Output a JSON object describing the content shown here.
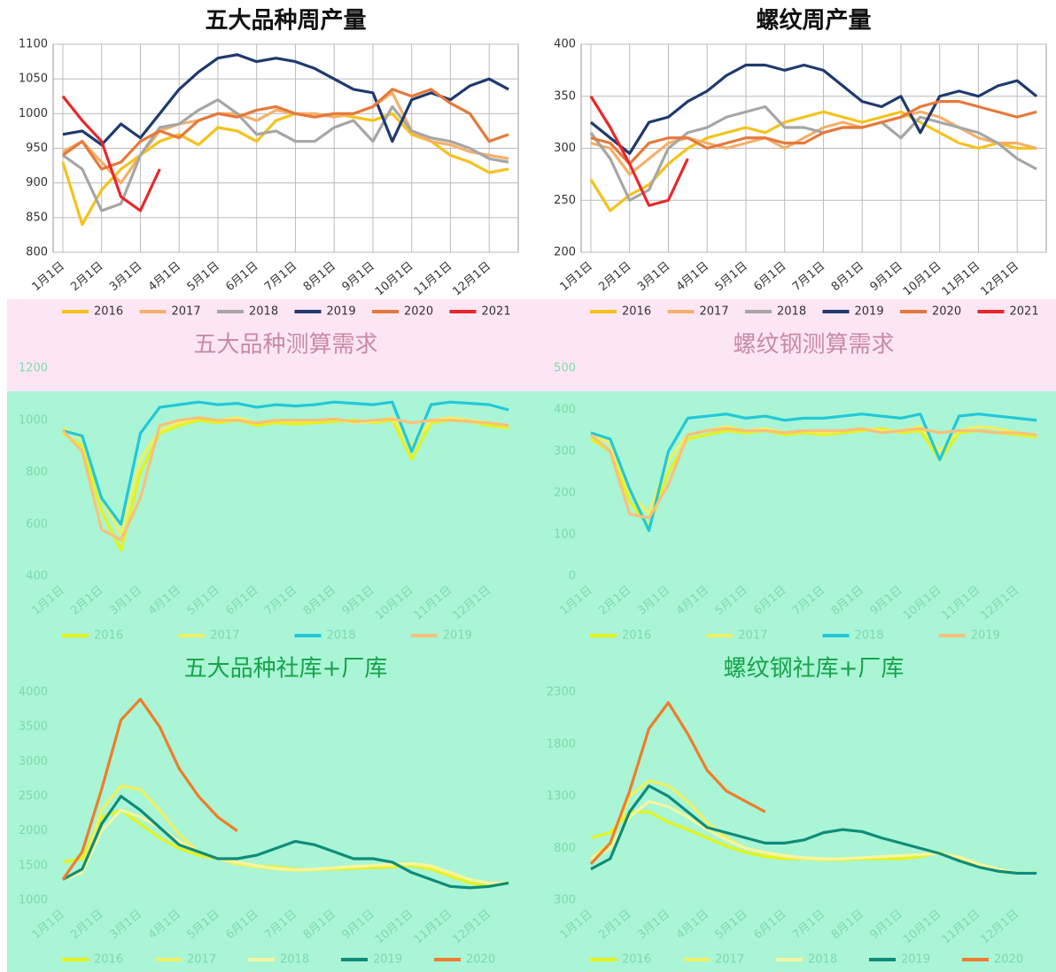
{
  "chart_data": [
    {
      "type": "line",
      "title": "五大品种周产量",
      "ylim": [
        800,
        1100
      ],
      "yticks": [
        800,
        850,
        900,
        950,
        1000,
        1050,
        1100
      ],
      "grid": true,
      "categories": [
        "1月1日",
        null,
        "2月1日",
        null,
        "3月1日",
        null,
        "4月1日",
        null,
        "5月1日",
        null,
        "6月1日",
        null,
        "7月1日",
        null,
        "8月1日",
        null,
        "9月1日",
        null,
        "10月1日",
        null,
        "11月1日",
        null,
        "12月1日",
        null
      ],
      "series": [
        {
          "name": "2016",
          "color": "#f5c21b",
          "values": [
            930,
            840,
            890,
            920,
            940,
            960,
            970,
            955,
            980,
            975,
            960,
            990,
            1000,
            995,
            1000,
            995,
            990,
            1000,
            970,
            960,
            940,
            930,
            915,
            920
          ]
        },
        {
          "name": "2017",
          "color": "#f4b06a",
          "values": [
            945,
            960,
            930,
            900,
            940,
            975,
            985,
            990,
            1000,
            1000,
            990,
            1005,
            1000,
            1000,
            995,
            1000,
            1010,
            1030,
            975,
            960,
            955,
            945,
            940,
            935
          ]
        },
        {
          "name": "2018",
          "color": "#a6a6a6",
          "values": [
            940,
            920,
            860,
            870,
            940,
            980,
            985,
            1005,
            1020,
            1000,
            970,
            975,
            960,
            960,
            980,
            990,
            960,
            1010,
            975,
            965,
            960,
            950,
            935,
            930
          ]
        },
        {
          "name": "2019",
          "color": "#1f3a6e",
          "values": [
            970,
            975,
            955,
            985,
            965,
            1000,
            1035,
            1060,
            1080,
            1085,
            1075,
            1080,
            1075,
            1065,
            1050,
            1035,
            1030,
            960,
            1020,
            1030,
            1020,
            1040,
            1050,
            1035
          ]
        },
        {
          "name": "2020",
          "color": "#e5793b",
          "values": [
            940,
            960,
            920,
            930,
            960,
            975,
            965,
            990,
            1000,
            995,
            1005,
            1010,
            1000,
            995,
            1000,
            1000,
            1010,
            1035,
            1025,
            1035,
            1015,
            1000,
            960,
            970
          ]
        },
        {
          "name": "2021",
          "color": "#e8272a",
          "values": [
            1025,
            990,
            960,
            880,
            860,
            920,
            null,
            null,
            null,
            null,
            null,
            null,
            null,
            null,
            null,
            null,
            null,
            null,
            null,
            null,
            null,
            null,
            null,
            null
          ]
        }
      ]
    },
    {
      "type": "line",
      "title": "螺纹周产量",
      "ylim": [
        200,
        400
      ],
      "yticks": [
        200,
        250,
        300,
        350,
        400
      ],
      "grid": true,
      "categories": [
        "1月1日",
        null,
        "2月1日",
        null,
        "3月1日",
        null,
        "4月1日",
        null,
        "5月1日",
        null,
        "6月1日",
        null,
        "7月1日",
        null,
        "8月1日",
        null,
        "9月1日",
        null,
        "10月1日",
        null,
        "11月1日",
        null,
        "12月1日",
        null
      ],
      "series": [
        {
          "name": "2016",
          "color": "#f5c21b",
          "values": [
            270,
            240,
            255,
            265,
            285,
            300,
            310,
            315,
            320,
            315,
            325,
            330,
            335,
            330,
            325,
            330,
            335,
            325,
            315,
            305,
            300,
            305,
            300,
            300
          ]
        },
        {
          "name": "2017",
          "color": "#f4b06a",
          "values": [
            305,
            300,
            275,
            290,
            305,
            310,
            305,
            300,
            305,
            310,
            300,
            310,
            320,
            325,
            320,
            325,
            330,
            335,
            330,
            320,
            310,
            305,
            305,
            300
          ]
        },
        {
          "name": "2018",
          "color": "#a6a6a6",
          "values": [
            315,
            290,
            250,
            260,
            300,
            315,
            320,
            330,
            335,
            340,
            320,
            320,
            315,
            320,
            320,
            325,
            310,
            330,
            325,
            320,
            315,
            305,
            290,
            280
          ]
        },
        {
          "name": "2019",
          "color": "#1f3a6e",
          "values": [
            325,
            310,
            295,
            325,
            330,
            345,
            355,
            370,
            380,
            380,
            375,
            380,
            375,
            360,
            345,
            340,
            350,
            315,
            350,
            355,
            350,
            360,
            365,
            350
          ]
        },
        {
          "name": "2020",
          "color": "#e5793b",
          "values": [
            310,
            305,
            285,
            305,
            310,
            310,
            300,
            305,
            310,
            310,
            305,
            305,
            315,
            320,
            320,
            325,
            330,
            340,
            345,
            345,
            340,
            335,
            330,
            335
          ]
        },
        {
          "name": "2021",
          "color": "#e8272a",
          "values": [
            350,
            320,
            285,
            245,
            250,
            290,
            null,
            null,
            null,
            null,
            null,
            null,
            null,
            null,
            null,
            null,
            null,
            null,
            null,
            null,
            null,
            null,
            null,
            null
          ]
        }
      ]
    },
    {
      "type": "line",
      "title": "五大品种测算需求",
      "ylim": [
        400,
        1200
      ],
      "yticks": [
        400,
        600,
        800,
        1000,
        1200
      ],
      "grid": false,
      "categories": [
        "1月1日",
        null,
        "2月1日",
        null,
        "3月1日",
        null,
        "4月1日",
        null,
        "5月1日",
        null,
        "6月1日",
        null,
        "7月1日",
        null,
        "8月1日",
        null,
        "9月1日",
        null,
        "10月1日",
        null,
        "11月1日",
        null,
        "12月1日",
        null
      ],
      "series": [
        {
          "name": "2016",
          "color": "#e6f21a",
          "values": [
            950,
            900,
            650,
            500,
            800,
            950,
            980,
            1000,
            990,
            1000,
            980,
            990,
            985,
            990,
            995,
            1000,
            990,
            1000,
            850,
            990,
            1000,
            995,
            980,
            970
          ]
        },
        {
          "name": "2017",
          "color": "#f0f060",
          "values": [
            970,
            930,
            700,
            560,
            850,
            960,
            990,
            1010,
            1000,
            1010,
            990,
            1000,
            995,
            1000,
            1005,
            990,
            995,
            1010,
            900,
            1000,
            1010,
            1000,
            990,
            980
          ]
        },
        {
          "name": "2018",
          "color": "#22c8d8",
          "values": [
            960,
            940,
            700,
            600,
            950,
            1050,
            1060,
            1070,
            1060,
            1065,
            1050,
            1060,
            1055,
            1060,
            1070,
            1065,
            1060,
            1070,
            880,
            1060,
            1070,
            1065,
            1060,
            1040
          ]
        },
        {
          "name": "2019",
          "color": "#f9c07a",
          "values": [
            960,
            880,
            580,
            540,
            700,
            980,
            1000,
            1010,
            1000,
            1000,
            990,
            1000,
            1000,
            1000,
            1005,
            995,
            1000,
            1005,
            990,
            1000,
            1000,
            995,
            990,
            980
          ]
        }
      ]
    },
    {
      "type": "line",
      "title": "螺纹钢测算需求",
      "ylim": [
        0,
        500
      ],
      "yticks": [
        0,
        100,
        200,
        300,
        400,
        500
      ],
      "grid": false,
      "categories": [
        "1月1日",
        null,
        "2月1日",
        null,
        "3月1日",
        null,
        "4月1日",
        null,
        "5月1日",
        null,
        "6月1日",
        null,
        "7月1日",
        null,
        "8月1日",
        null,
        "9月1日",
        null,
        "10月1日",
        null,
        "11月1日",
        null,
        "12月1日",
        null
      ],
      "series": [
        {
          "name": "2016",
          "color": "#e6f21a",
          "values": [
            330,
            300,
            180,
            120,
            250,
            330,
            340,
            350,
            345,
            350,
            340,
            345,
            340,
            345,
            350,
            355,
            345,
            350,
            280,
            345,
            350,
            345,
            340,
            335
          ]
        },
        {
          "name": "2017",
          "color": "#f0f060",
          "values": [
            340,
            320,
            200,
            150,
            280,
            340,
            350,
            360,
            350,
            355,
            345,
            350,
            345,
            350,
            355,
            350,
            350,
            360,
            300,
            350,
            360,
            355,
            345,
            340
          ]
        },
        {
          "name": "2018",
          "color": "#22c8d8",
          "values": [
            345,
            330,
            210,
            110,
            300,
            380,
            385,
            390,
            380,
            385,
            375,
            380,
            380,
            385,
            390,
            385,
            380,
            390,
            280,
            385,
            390,
            385,
            380,
            375
          ]
        },
        {
          "name": "2019",
          "color": "#f9c07a",
          "values": [
            340,
            300,
            150,
            140,
            220,
            340,
            350,
            355,
            350,
            350,
            345,
            350,
            350,
            350,
            355,
            345,
            350,
            355,
            345,
            350,
            350,
            345,
            345,
            340
          ]
        }
      ]
    },
    {
      "type": "line",
      "title": "五大品种社库+厂库",
      "ylim": [
        1000,
        4000
      ],
      "yticks": [
        1000,
        1500,
        2000,
        2500,
        3000,
        3500,
        4000
      ],
      "grid": false,
      "categories": [
        "1月1日",
        null,
        "2月1日",
        null,
        "3月1日",
        null,
        "4月1日",
        null,
        "5月1日",
        null,
        "6月1日",
        null,
        "7月1日",
        null,
        "8月1日",
        null,
        "9月1日",
        null,
        "10月1日",
        null,
        "11月1日",
        null,
        "12月1日",
        null
      ],
      "series": [
        {
          "name": "2016",
          "color": "#e6f21a",
          "values": [
            1550,
            1600,
            2200,
            2300,
            2100,
            1900,
            1750,
            1650,
            1600,
            1550,
            1500,
            1480,
            1450,
            1440,
            1450,
            1460,
            1470,
            1480,
            1500,
            1450,
            1350,
            1250,
            1200,
            1250
          ]
        },
        {
          "name": "2017",
          "color": "#f0f060",
          "values": [
            1300,
            1450,
            2300,
            2650,
            2600,
            2300,
            1950,
            1700,
            1600,
            1520,
            1480,
            1450,
            1430,
            1440,
            1460,
            1480,
            1500,
            1500,
            1520,
            1480,
            1380,
            1300,
            1250,
            1250
          ]
        },
        {
          "name": "2018",
          "color": "#f5f5a0",
          "values": [
            1300,
            1400,
            2000,
            2300,
            2200,
            2050,
            1850,
            1700,
            1600,
            1550,
            1500,
            1460,
            1440,
            1450,
            1470,
            1490,
            1500,
            1520,
            1530,
            1500,
            1400,
            1300,
            1250,
            1250
          ]
        },
        {
          "name": "2019",
          "color": "#0f8c7a",
          "values": [
            1300,
            1450,
            2100,
            2500,
            2300,
            2050,
            1800,
            1700,
            1600,
            1600,
            1650,
            1750,
            1850,
            1800,
            1700,
            1600,
            1600,
            1550,
            1400,
            1300,
            1200,
            1180,
            1200,
            1250
          ]
        },
        {
          "name": "2020",
          "color": "#ef7d2a",
          "values": [
            1300,
            1700,
            2600,
            3600,
            3900,
            3500,
            2900,
            2500,
            2200,
            2000,
            null,
            null,
            null,
            null,
            null,
            null,
            null,
            null,
            null,
            null,
            null,
            null,
            null,
            null
          ]
        }
      ]
    },
    {
      "type": "line",
      "title": "螺纹钢社库+厂库",
      "ylim": [
        300,
        2300
      ],
      "yticks": [
        300,
        800,
        1300,
        1800,
        2300
      ],
      "grid": false,
      "categories": [
        "1月1日",
        null,
        "2月1日",
        null,
        "3月1日",
        null,
        "4月1日",
        null,
        "5月1日",
        null,
        "6月1日",
        null,
        "7月1日",
        null,
        "8月1日",
        null,
        "9月1日",
        null,
        "10月1日",
        null,
        "11月1日",
        null,
        "12月1日",
        null
      ],
      "series": [
        {
          "name": "2016",
          "color": "#e6f21a",
          "values": [
            900,
            950,
            1150,
            1150,
            1050,
            980,
            900,
            820,
            760,
            720,
            700,
            700,
            690,
            690,
            700,
            700,
            700,
            720,
            760,
            700,
            640,
            580,
            560,
            560
          ]
        },
        {
          "name": "2017",
          "color": "#f0f060",
          "values": [
            700,
            850,
            1300,
            1450,
            1400,
            1250,
            1050,
            900,
            800,
            750,
            720,
            700,
            690,
            700,
            710,
            720,
            730,
            740,
            760,
            700,
            650,
            600,
            560,
            560
          ]
        },
        {
          "name": "2018",
          "color": "#f5f5a0",
          "values": [
            700,
            800,
            1100,
            1250,
            1200,
            1100,
            980,
            880,
            800,
            760,
            730,
            710,
            700,
            700,
            710,
            720,
            730,
            740,
            750,
            720,
            650,
            600,
            560,
            560
          ]
        },
        {
          "name": "2019",
          "color": "#0f8c7a",
          "values": [
            600,
            700,
            1150,
            1400,
            1300,
            1150,
            1000,
            950,
            900,
            850,
            850,
            880,
            950,
            980,
            960,
            900,
            850,
            800,
            750,
            680,
            620,
            580,
            560,
            560
          ]
        },
        {
          "name": "2020",
          "color": "#ef7d2a",
          "values": [
            650,
            850,
            1350,
            1950,
            2200,
            1900,
            1550,
            1350,
            1250,
            1150,
            null,
            null,
            null,
            null,
            null,
            null,
            null,
            null,
            null,
            null,
            null,
            null,
            null,
            null
          ]
        }
      ]
    }
  ]
}
